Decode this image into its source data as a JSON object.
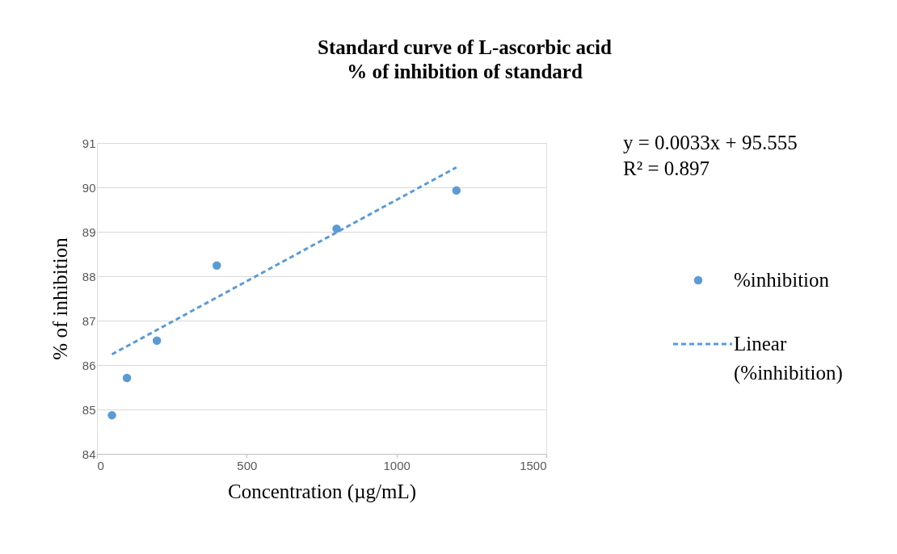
{
  "chart_data": {
    "type": "scatter",
    "title": [
      "Standard curve of L-ascorbic acid",
      "% of inhibition of standard"
    ],
    "xlabel": "Concentration (µg/mL)",
    "ylabel": "% of inhibition",
    "series": [
      {
        "name": "%inhibition",
        "color": "#5b9bd5",
        "x": [
          50,
          100,
          200,
          400,
          800,
          1200
        ],
        "values": [
          84.87,
          85.71,
          86.55,
          88.24,
          89.07,
          89.93
        ],
        "marker": "circle"
      },
      {
        "name": "Linear (%inhibition)",
        "type": "line",
        "color": "#5b9bd5",
        "x": [
          50,
          1200
        ],
        "values": [
          86.24,
          90.45
        ],
        "line_style": "dashed",
        "marker": "none"
      }
    ],
    "xlim": [
      0,
      1500
    ],
    "xticks": [
      0,
      500,
      1000,
      1500
    ],
    "ylim": [
      84,
      91
    ],
    "yticks": [
      84,
      85,
      86,
      87,
      88,
      89,
      90,
      91
    ],
    "grid": "y",
    "legend": "right",
    "annotations": [
      "y = 0.0033x + 95.555",
      "R² = 0.897"
    ]
  }
}
